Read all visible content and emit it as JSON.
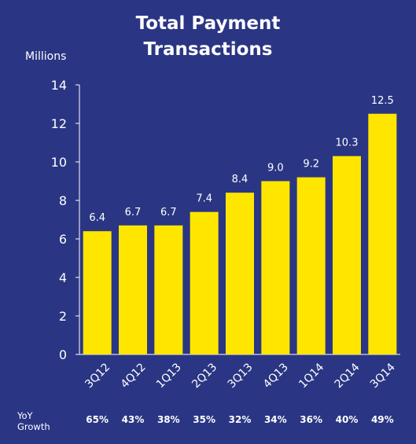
{
  "chart_data": {
    "type": "bar",
    "title": [
      "Total Payment",
      "Transactions"
    ],
    "ylabel": "Millions",
    "categories": [
      "3Q12",
      "4Q12",
      "1Q13",
      "2Q13",
      "3Q13",
      "4Q13",
      "1Q14",
      "2Q14",
      "3Q14"
    ],
    "values": [
      6.4,
      6.7,
      6.7,
      7.4,
      8.4,
      9.0,
      9.2,
      10.3,
      12.5
    ],
    "value_labels": [
      "6.4",
      "6.7",
      "6.7",
      "7.4",
      "8.4",
      "9.0",
      "9.2",
      "10.3",
      "12.5"
    ],
    "ylim": [
      0,
      14
    ],
    "yticks": [
      0,
      2,
      4,
      6,
      8,
      10,
      12,
      14
    ],
    "grid": false,
    "bar_color": "#ffe600",
    "background_color": "#2a3683",
    "yoy_growth": {
      "label": [
        "YoY",
        "Growth"
      ],
      "values": [
        "65%",
        "43%",
        "38%",
        "35%",
        "32%",
        "34%",
        "36%",
        "40%",
        "49%"
      ]
    }
  }
}
